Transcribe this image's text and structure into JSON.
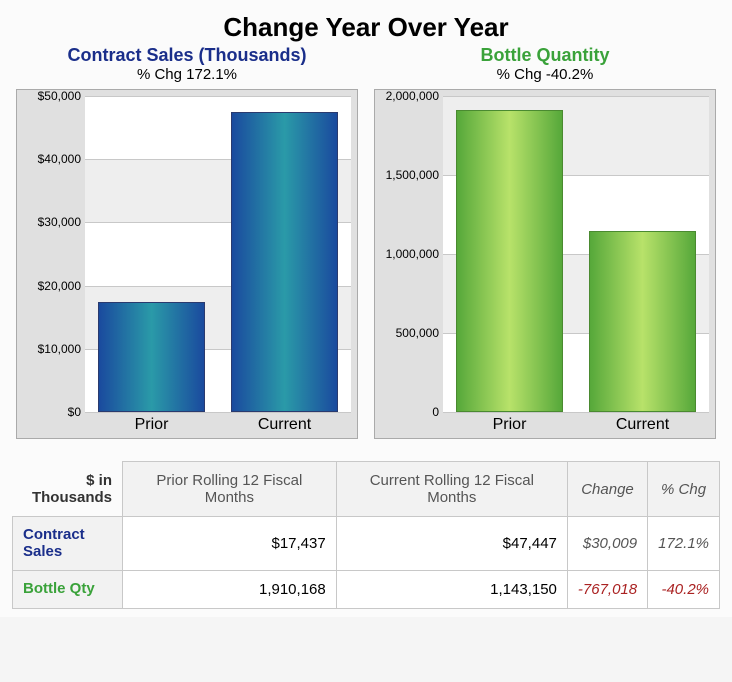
{
  "main_title": "Change Year Over Year",
  "chart_left": {
    "title": "Contract Sales (Thousands)",
    "title_color": "#1a2e8a",
    "subtitle": "% Chg 172.1%",
    "type": "bar",
    "categories": [
      "Prior",
      "Current"
    ],
    "values": [
      17437,
      47447
    ],
    "ymin": 0,
    "ymax": 50000,
    "ytick_step": 10000,
    "ytick_labels": [
      "$0",
      "$10,000",
      "$20,000",
      "$30,000",
      "$40,000",
      "$50,000"
    ],
    "bar_gradient_from": "#1a4a9e",
    "bar_gradient_to": "#2a9aa8",
    "bar_border": "#2a3a6e",
    "frame_bg": "#e0e0e0",
    "plot_bg": "#ffffff",
    "alt_band_color": "#eeeeee",
    "grid_color": "#c8c8c8"
  },
  "chart_right": {
    "title": "Bottle Quantity",
    "title_color": "#3aa23a",
    "subtitle": "% Chg -40.2%",
    "type": "bar",
    "categories": [
      "Prior",
      "Current"
    ],
    "values": [
      1910168,
      1143150
    ],
    "ymin": 0,
    "ymax": 2000000,
    "ytick_step": 500000,
    "ytick_labels": [
      "0",
      "500,000",
      "1,000,000",
      "1,500,000",
      "2,000,000"
    ],
    "bar_gradient_from": "#56a83a",
    "bar_gradient_to": "#b8e26a",
    "bar_border": "#4a8a30",
    "frame_bg": "#e0e0e0",
    "plot_bg": "#ffffff",
    "alt_band_color": "#eeeeee",
    "grid_color": "#c8c8c8"
  },
  "table": {
    "corner_label": "$ in Thousands",
    "columns": [
      {
        "label": "Prior Rolling 12 Fiscal Months",
        "italic": false
      },
      {
        "label": "Current Rolling 12 Fiscal Months",
        "italic": false
      },
      {
        "label": "Change",
        "italic": true
      },
      {
        "label": "% Chg",
        "italic": true
      }
    ],
    "rows": [
      {
        "head": "Contract Sales",
        "head_color": "#1a2e8a",
        "cells": [
          {
            "text": "$17,437",
            "italic": false,
            "color": "#000000"
          },
          {
            "text": "$47,447",
            "italic": false,
            "color": "#000000"
          },
          {
            "text": "$30,009",
            "italic": true,
            "color": "#555555"
          },
          {
            "text": "172.1%",
            "italic": true,
            "color": "#555555"
          }
        ]
      },
      {
        "head": "Bottle Qty",
        "head_color": "#3aa23a",
        "cells": [
          {
            "text": "1,910,168",
            "italic": false,
            "color": "#000000"
          },
          {
            "text": "1,143,150",
            "italic": false,
            "color": "#000000"
          },
          {
            "text": "-767,018",
            "italic": true,
            "color": "#aa2222"
          },
          {
            "text": "-40.2%",
            "italic": true,
            "color": "#aa2222"
          }
        ]
      }
    ]
  }
}
